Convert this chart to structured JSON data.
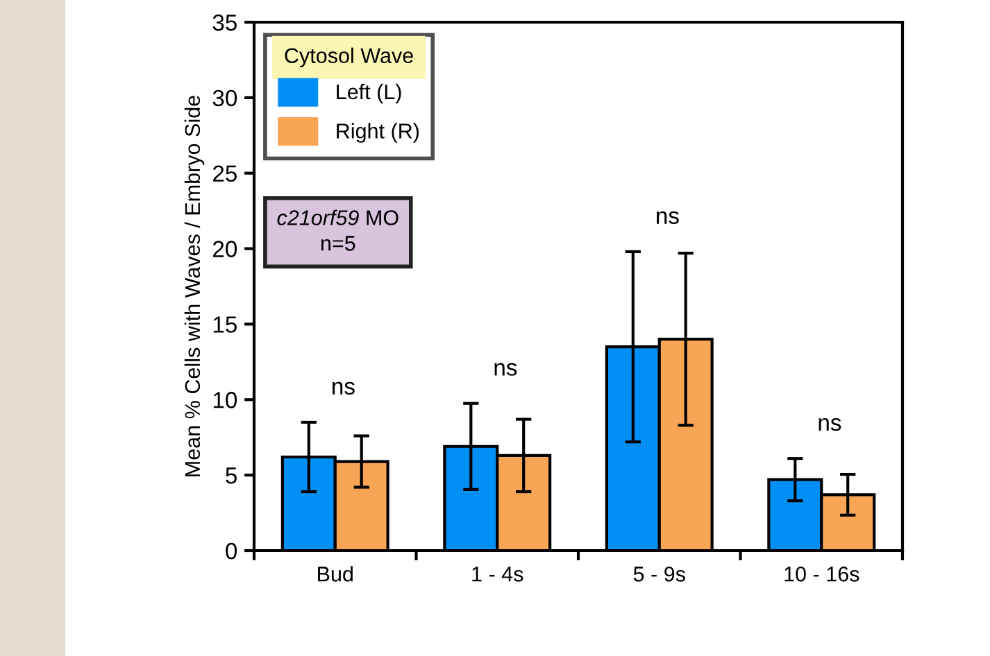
{
  "chart_data": {
    "type": "bar",
    "categories": [
      "Bud",
      "1 - 4s",
      "5 - 9s",
      "10 - 16s"
    ],
    "series": [
      {
        "name": "Left (L)",
        "color": "#0090f5",
        "values": [
          6.2,
          6.9,
          13.5,
          4.7
        ],
        "errors": [
          2.3,
          2.85,
          6.3,
          1.4
        ]
      },
      {
        "name": "Right (R)",
        "color": "#f8a656",
        "values": [
          5.9,
          6.3,
          14.0,
          3.7
        ],
        "errors": [
          1.7,
          2.4,
          5.7,
          1.35
        ]
      }
    ],
    "ylabel": "Mean % Cells with Waves / Embryo Side",
    "legend_title": "Cytosol Wave",
    "legend": "top left",
    "ylim": [
      0,
      35
    ],
    "yticks": [
      0,
      5,
      10,
      15,
      20,
      25,
      30,
      35
    ],
    "grid": false,
    "annotations": [
      "ns",
      "ns",
      "ns",
      "ns",
      "c21orf59 MO",
      "n=5"
    ]
  }
}
